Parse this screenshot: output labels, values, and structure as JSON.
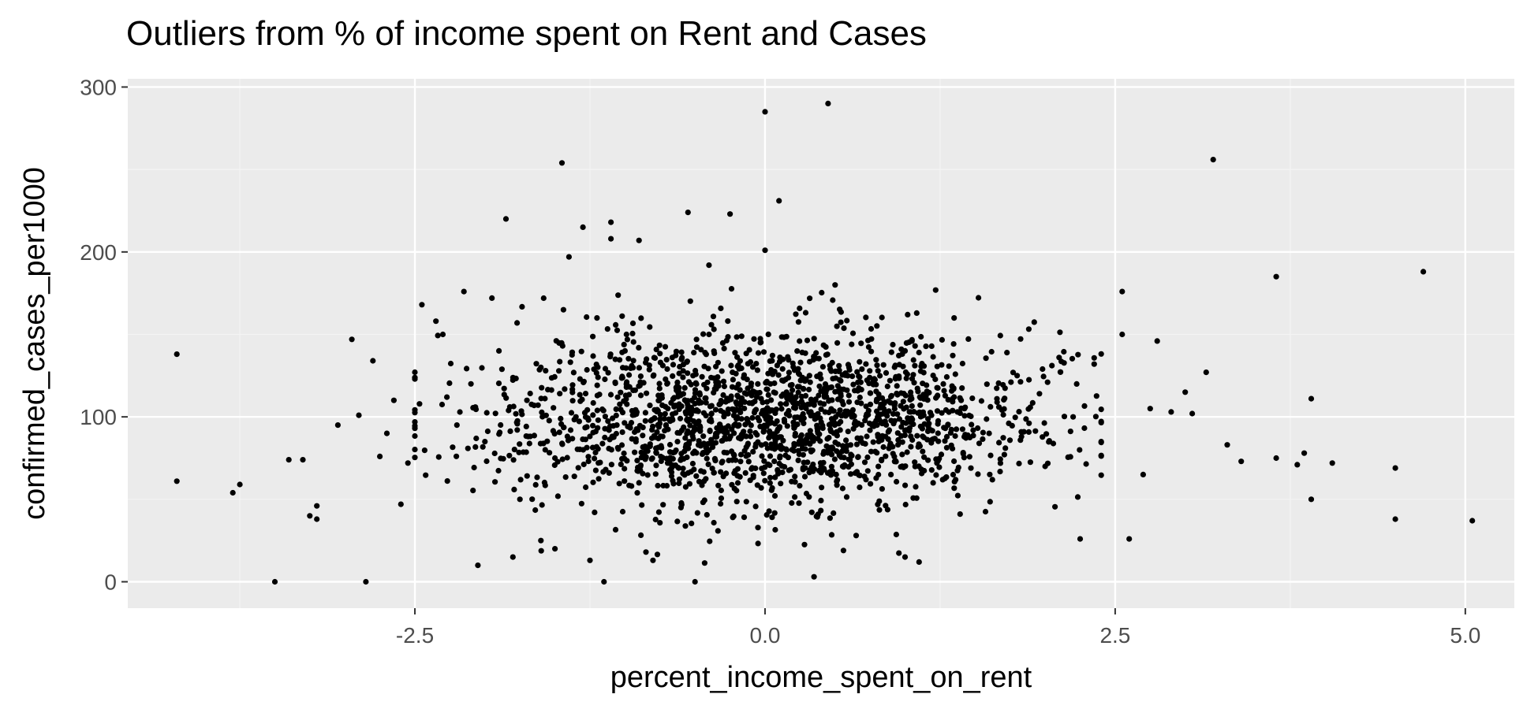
{
  "chart_data": {
    "type": "scatter",
    "title": "Outliers from % of income spent on Rent and Cases",
    "xlabel": "percent_income_spent_on_rent",
    "ylabel": "confirmed_cases_per1000",
    "xlim": [
      -4.55,
      5.35
    ],
    "ylim": [
      -16,
      305
    ],
    "x_ticks": [
      -2.5,
      0.0,
      2.5,
      5.0
    ],
    "x_tick_labels": [
      "-2.5",
      "0.0",
      "2.5",
      "5.0"
    ],
    "y_ticks": [
      0,
      100,
      200,
      300
    ],
    "y_tick_labels": [
      "0",
      "100",
      "200",
      "300"
    ],
    "grid": true,
    "legend": "none",
    "colors": {
      "panel_background": "#EBEBEB",
      "grid_major": "#FFFFFF",
      "grid_minor": "#F4F4F4",
      "point": "#000000",
      "tick_text": "#4D4D4D",
      "tick_mark": "#333333"
    },
    "points": [
      {
        "x": -4.2,
        "y": 138
      },
      {
        "x": -4.2,
        "y": 61
      },
      {
        "x": -3.8,
        "y": 54
      },
      {
        "x": -3.75,
        "y": 59
      },
      {
        "x": -3.5,
        "y": 0
      },
      {
        "x": -3.4,
        "y": 74
      },
      {
        "x": -3.3,
        "y": 74
      },
      {
        "x": -3.25,
        "y": 40
      },
      {
        "x": -3.2,
        "y": 38
      },
      {
        "x": -3.2,
        "y": 46
      },
      {
        "x": -3.05,
        "y": 95
      },
      {
        "x": -2.95,
        "y": 147
      },
      {
        "x": -2.9,
        "y": 101
      },
      {
        "x": -2.85,
        "y": 0
      },
      {
        "x": -2.8,
        "y": 134
      },
      {
        "x": -2.75,
        "y": 76
      },
      {
        "x": -2.7,
        "y": 90
      },
      {
        "x": -2.65,
        "y": 110
      },
      {
        "x": -2.6,
        "y": 47
      },
      {
        "x": -2.55,
        "y": 72
      },
      {
        "x": -2.45,
        "y": 168
      },
      {
        "x": -2.35,
        "y": 158
      },
      {
        "x": -2.3,
        "y": 150
      },
      {
        "x": -2.2,
        "y": 95
      },
      {
        "x": -2.15,
        "y": 176
      },
      {
        "x": -2.05,
        "y": 10
      },
      {
        "x": -1.95,
        "y": 172
      },
      {
        "x": -1.85,
        "y": 220
      },
      {
        "x": -1.8,
        "y": 15
      },
      {
        "x": -1.75,
        "y": 50
      },
      {
        "x": -1.6,
        "y": 25
      },
      {
        "x": -1.5,
        "y": 20
      },
      {
        "x": -1.45,
        "y": 254
      },
      {
        "x": -1.4,
        "y": 197
      },
      {
        "x": -1.3,
        "y": 215
      },
      {
        "x": -1.25,
        "y": 13
      },
      {
        "x": -1.15,
        "y": 0
      },
      {
        "x": -1.1,
        "y": 218
      },
      {
        "x": -1.1,
        "y": 208
      },
      {
        "x": -0.9,
        "y": 207
      },
      {
        "x": -0.85,
        "y": 18
      },
      {
        "x": -0.8,
        "y": 13
      },
      {
        "x": -0.55,
        "y": 224
      },
      {
        "x": -0.5,
        "y": 0
      },
      {
        "x": -0.4,
        "y": 192
      },
      {
        "x": -0.25,
        "y": 223
      },
      {
        "x": 0.0,
        "y": 285
      },
      {
        "x": 0.0,
        "y": 201
      },
      {
        "x": 0.1,
        "y": 231
      },
      {
        "x": 0.35,
        "y": 3
      },
      {
        "x": 0.45,
        "y": 290
      },
      {
        "x": 0.5,
        "y": 180
      },
      {
        "x": 1.0,
        "y": 15
      },
      {
        "x": 1.1,
        "y": 12
      },
      {
        "x": 1.35,
        "y": 160
      },
      {
        "x": 2.25,
        "y": 26
      },
      {
        "x": 2.35,
        "y": 132
      },
      {
        "x": 2.55,
        "y": 176
      },
      {
        "x": 2.6,
        "y": 26
      },
      {
        "x": 2.7,
        "y": 65
      },
      {
        "x": 2.8,
        "y": 146
      },
      {
        "x": 2.9,
        "y": 103
      },
      {
        "x": 3.0,
        "y": 115
      },
      {
        "x": 3.05,
        "y": 102
      },
      {
        "x": 3.15,
        "y": 127
      },
      {
        "x": 3.2,
        "y": 256
      },
      {
        "x": 3.3,
        "y": 83
      },
      {
        "x": 3.4,
        "y": 73
      },
      {
        "x": 3.65,
        "y": 185
      },
      {
        "x": 3.65,
        "y": 75
      },
      {
        "x": 3.8,
        "y": 71
      },
      {
        "x": 3.85,
        "y": 78
      },
      {
        "x": 3.9,
        "y": 111
      },
      {
        "x": 3.9,
        "y": 50
      },
      {
        "x": 4.05,
        "y": 72
      },
      {
        "x": 4.5,
        "y": 69
      },
      {
        "x": 4.5,
        "y": 38
      },
      {
        "x": 4.7,
        "y": 188
      },
      {
        "x": 5.05,
        "y": 37
      },
      {
        "x": -2.1,
        "y": 120
      },
      {
        "x": -2.0,
        "y": 85
      },
      {
        "x": -1.9,
        "y": 140
      },
      {
        "x": -1.7,
        "y": 110
      },
      {
        "x": -1.6,
        "y": 130
      },
      {
        "x": -1.5,
        "y": 75
      },
      {
        "x": -1.35,
        "y": 100
      },
      {
        "x": -1.2,
        "y": 160
      },
      {
        "x": -1.0,
        "y": 140
      },
      {
        "x": -0.9,
        "y": 60
      },
      {
        "x": -0.7,
        "y": 120
      },
      {
        "x": -0.6,
        "y": 45
      },
      {
        "x": -0.4,
        "y": 150
      },
      {
        "x": -0.2,
        "y": 100
      },
      {
        "x": 0.2,
        "y": 110
      },
      {
        "x": 0.4,
        "y": 70
      },
      {
        "x": 0.6,
        "y": 130
      },
      {
        "x": 0.8,
        "y": 95
      },
      {
        "x": 1.0,
        "y": 140
      },
      {
        "x": 1.2,
        "y": 60
      },
      {
        "x": 1.4,
        "y": 110
      },
      {
        "x": 1.6,
        "y": 90
      },
      {
        "x": 1.8,
        "y": 125
      },
      {
        "x": 2.0,
        "y": 70
      },
      {
        "x": 2.2,
        "y": 100
      },
      {
        "x": 2.4,
        "y": 85
      },
      {
        "x": 2.55,
        "y": 150
      },
      {
        "x": 2.75,
        "y": 105
      }
    ],
    "cluster": {
      "count": 1900,
      "x_mean": 0.0,
      "x_sd": 0.95,
      "x_range": [
        -2.5,
        2.4
      ],
      "y_mean": 98,
      "y_sd": 26,
      "y_range": [
        5,
        200
      ],
      "seed": 20240611
    }
  }
}
